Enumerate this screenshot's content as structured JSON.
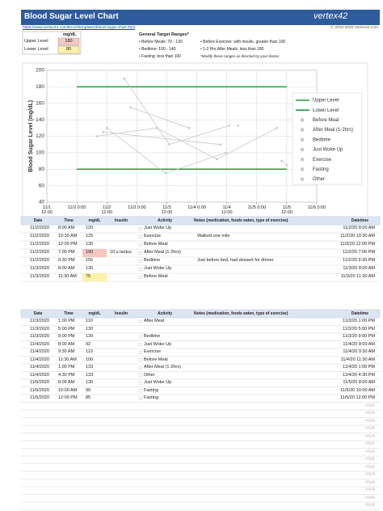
{
  "header": {
    "title": "Blood Sugar Level Chart",
    "logo": "vertex42",
    "url": "https://www.vertex42.com/ExcelTemplates/blood-sugar-chart.html",
    "copyright": "© 2010-2020 Vertex42.com"
  },
  "limits": {
    "unit": "mg/dL",
    "rows": [
      [
        "Upper Level",
        180
      ],
      [
        "Lower Level",
        80
      ]
    ]
  },
  "targets": {
    "title": "General Target Ranges*",
    "items": [
      "• Before Meals: 70 - 130",
      "• Bedtime: 100 - 140",
      "• Fasting: less than 100",
      "• Before Exercise: with insulin, greater than 100",
      "• 1-2 Hrs After Meals: less than 180"
    ],
    "note": "*Modify these ranges as directed by your doctor."
  },
  "chart_data": {
    "type": "line",
    "y_label": "Blood Sugar Level (mg/dL)",
    "xlim": [
      1.5,
      6
    ],
    "xticks": [
      {
        "value": 1.5,
        "label": "11/1 12:00"
      },
      {
        "value": 2,
        "label": "11/2 0:00"
      },
      {
        "value": 2.5,
        "label": "11/2 12:00"
      },
      {
        "value": 3,
        "label": "11/3 0:00"
      },
      {
        "value": 3.5,
        "label": "11/3 12:00"
      },
      {
        "value": 4,
        "label": "11/4 0:00"
      },
      {
        "value": 4.5,
        "label": "11/4 12:00"
      },
      {
        "value": 5,
        "label": "11/5 0:00"
      },
      {
        "value": 5.5,
        "label": "11/5 12:00"
      },
      {
        "value": 6,
        "label": "11/6 0:00"
      }
    ],
    "ylim": [
      40,
      200
    ],
    "yticks": [
      40,
      60,
      80,
      100,
      120,
      140,
      160,
      180,
      200
    ],
    "grid": true,
    "legend": "right",
    "series": [
      {
        "name": "Upper Level",
        "color": "#1e9e3c",
        "x": [
          2,
          5.5
        ],
        "values": [
          180,
          180
        ]
      },
      {
        "name": "Lower Level",
        "color": "#1e9e3c",
        "x": [
          2,
          5.5
        ],
        "values": [
          80,
          80
        ]
      },
      {
        "name": "Before Meal",
        "color": "#c8c8c8",
        "x": [
          2.5,
          3.479,
          4.479
        ],
        "values": [
          130,
          75,
          100
        ]
      },
      {
        "name": "After Meal (1-2hrs)",
        "color": "#c8c8c8",
        "x": [
          2.792,
          3.542,
          4.542
        ],
        "values": [
          190,
          110,
          133
        ]
      },
      {
        "name": "Bedtime",
        "color": "#c8c8c8",
        "x": [
          2.896,
          3.875
        ],
        "values": [
          155,
          130
        ]
      },
      {
        "name": "Just Woke Up",
        "color": "#c8c8c8",
        "x": [
          2.333,
          3.333,
          4.333,
          5.333
        ],
        "values": [
          120,
          130,
          92,
          130
        ]
      },
      {
        "name": "Exercise",
        "color": "#c8c8c8",
        "x": [
          2.438,
          4.396
        ],
        "values": [
          125,
          110
        ]
      },
      {
        "name": "Fasting",
        "color": "#c8c8c8",
        "x": [
          5.417,
          5.5
        ],
        "values": [
          90,
          85
        ]
      },
      {
        "name": "Other",
        "color": "#c8c8c8",
        "x": [
          4.688
        ],
        "values": [
          133
        ]
      }
    ]
  },
  "tables": [
    {
      "columns": [
        "Date",
        "Time",
        "mg/dL",
        "Insulin",
        "Activity",
        "Notes (medication, foods eaten, type of exercise)",
        "Datetime"
      ],
      "rows": [
        [
          "11/2/2020",
          "8:00 AM",
          120,
          null,
          "Just Woke Up",
          null,
          "11/2/20 8:00 AM"
        ],
        [
          "11/2/2020",
          "10:30 AM",
          125,
          null,
          "Exercise",
          "Walked one mile",
          "11/2/20 10:30 AM"
        ],
        [
          "11/2/2020",
          "12:00 PM",
          130,
          null,
          "Before Meal",
          null,
          "11/2/20 12:00 PM"
        ],
        [
          "11/2/2020",
          "7:00 PM",
          190,
          "10 u lantus",
          "After Meal (1-2hrs)",
          null,
          "11/2/20 7:00 PM"
        ],
        [
          "11/2/2020",
          "9:30 PM",
          155,
          null,
          "Bedtime",
          "Just before bed, had dessert for dinner",
          "11/2/20 9:30 PM"
        ],
        [
          "11/3/2020",
          "8:00 AM",
          130,
          null,
          "Just Woke Up",
          null,
          "11/3/20 8:00 AM"
        ],
        [
          "11/3/2020",
          "11:30 AM",
          75,
          null,
          "Before Meal",
          null,
          "11/3/20 11:30 AM"
        ]
      ]
    },
    {
      "columns": [
        "Date",
        "Time",
        "mg/dL",
        "Insulin",
        "Activity",
        "Notes (medication, foods eaten, type of exercise)",
        "Datetime"
      ],
      "rows": [
        [
          "11/3/2020",
          "1:00 PM",
          110,
          null,
          "After Meal",
          null,
          "11/3/20 1:00 PM"
        ],
        [
          "11/3/2020",
          "5:00 PM",
          130,
          null,
          null,
          null,
          "11/3/20 5:00 PM"
        ],
        [
          "11/3/2020",
          "9:00 PM",
          130,
          null,
          "Bedtime",
          null,
          "11/3/20 9:00 PM"
        ],
        [
          "11/4/2020",
          "8:00 AM",
          92,
          null,
          "Just Woke Up",
          null,
          "11/4/20 8:00 AM"
        ],
        [
          "11/4/2020",
          "9:30 AM",
          110,
          null,
          "Exercise",
          null,
          "11/4/20 9:30 AM"
        ],
        [
          "11/4/2020",
          "11:30 AM",
          100,
          null,
          "Before Meal",
          null,
          "11/4/20 11:30 AM"
        ],
        [
          "11/4/2020",
          "1:00 PM",
          133,
          null,
          "After Meal (1-2hrs)",
          null,
          "11/4/20 1:00 PM"
        ],
        [
          "11/4/2020",
          "4:30 PM",
          133,
          null,
          "Other",
          null,
          "11/4/20 4:30 PM"
        ],
        [
          "11/5/2020",
          "8:00 AM",
          130,
          null,
          "Just Woke Up",
          null,
          "11/5/20 8:00 AM"
        ],
        [
          "11/5/2020",
          "10:00 AM",
          90,
          null,
          "Fasting",
          null,
          "11/5/20 10:00 AM"
        ],
        [
          "11/5/2020",
          "12:00 PM",
          85,
          null,
          "Fasting",
          null,
          "11/5/20 12:00 PM"
        ],
        [
          null,
          null,
          null,
          null,
          null,
          null,
          "#N/A"
        ],
        [
          null,
          null,
          null,
          null,
          null,
          null,
          "#N/A"
        ],
        [
          null,
          null,
          null,
          null,
          null,
          null,
          "#N/A"
        ],
        [
          null,
          null,
          null,
          null,
          null,
          null,
          "#N/A"
        ],
        [
          null,
          null,
          null,
          null,
          null,
          null,
          "#N/A"
        ],
        [
          null,
          null,
          null,
          null,
          null,
          null,
          "#N/A"
        ],
        [
          null,
          null,
          null,
          null,
          null,
          null,
          "#N/A"
        ],
        [
          null,
          null,
          null,
          null,
          null,
          null,
          "#N/A"
        ],
        [
          null,
          null,
          null,
          null,
          null,
          null,
          "#N/A"
        ],
        [
          null,
          null,
          null,
          null,
          null,
          null,
          "#N/A"
        ],
        [
          null,
          null,
          null,
          null,
          null,
          null,
          "#N/A"
        ],
        [
          null,
          null,
          null,
          null,
          null,
          null,
          "#N/A"
        ],
        [
          null,
          null,
          null,
          null,
          null,
          null,
          "#N/A"
        ],
        [
          null,
          null,
          null,
          null,
          null,
          null,
          "#N/A"
        ]
      ]
    }
  ]
}
